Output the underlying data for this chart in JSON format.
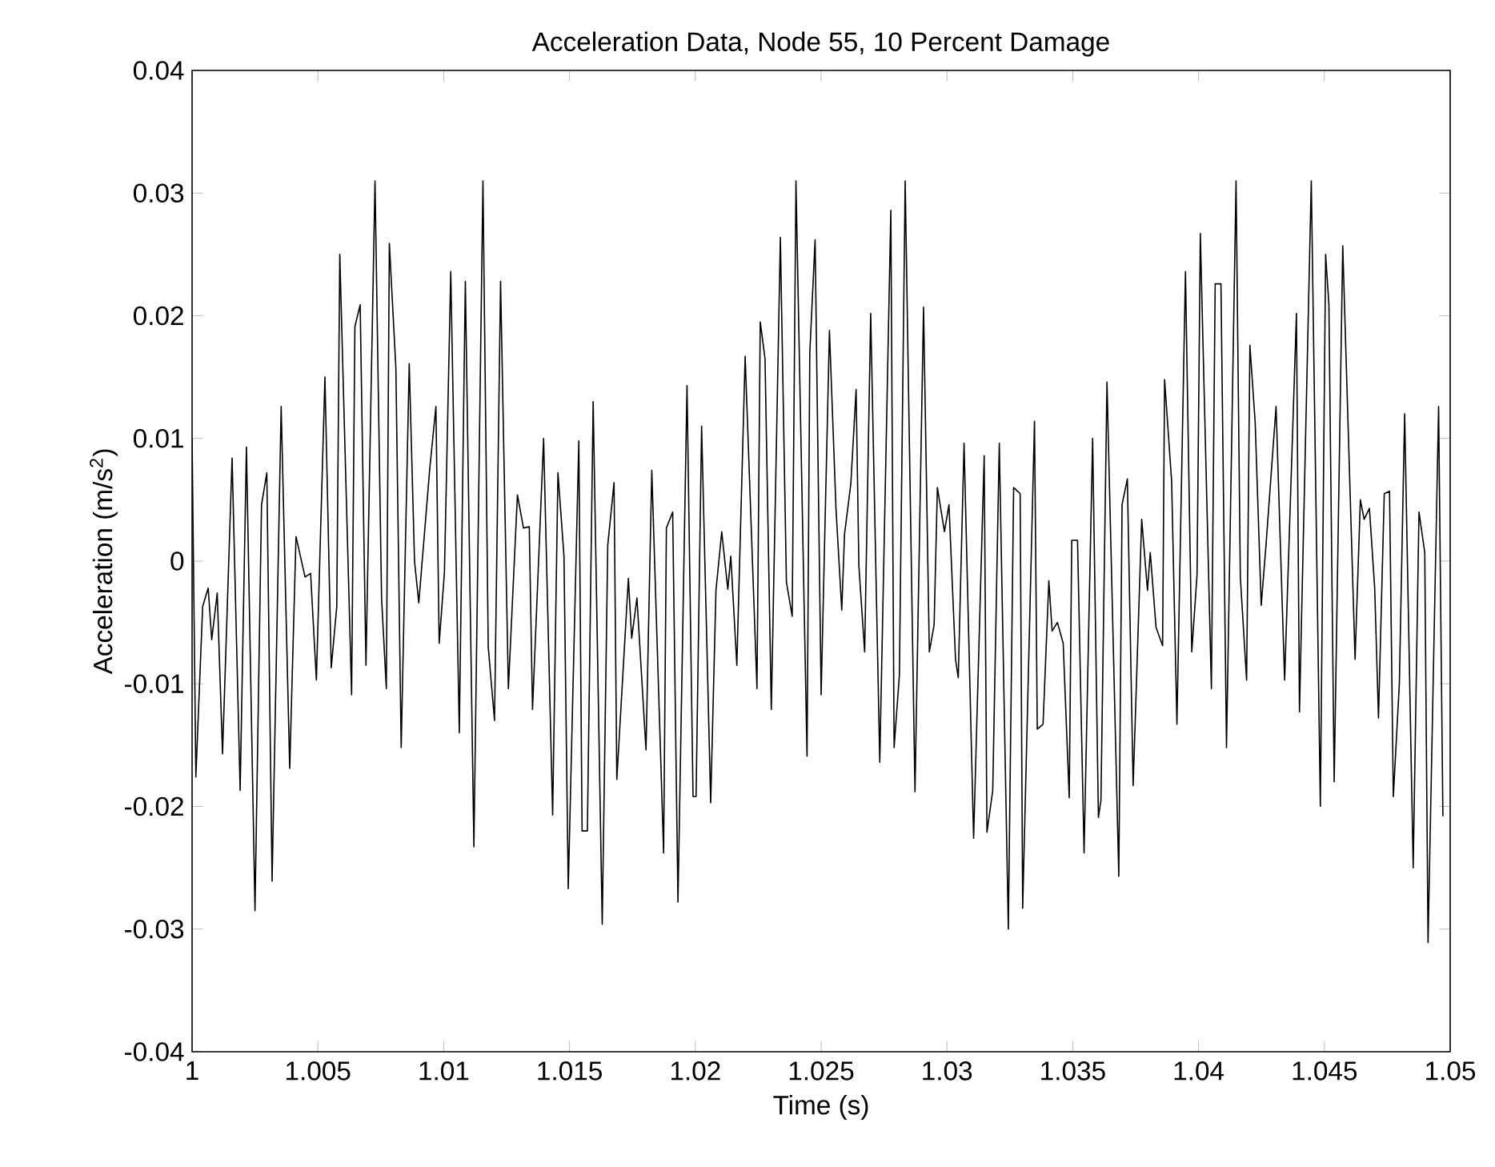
{
  "chart_data": {
    "type": "line",
    "title": "Acceleration Data, Node 55, 10 Percent Damage",
    "xlabel": "Time (s)",
    "ylabel": "Acceleration (m/s$^{2}$)",
    "xlim": [
      1,
      1.05
    ],
    "ylim": [
      -0.04,
      0.04
    ],
    "xticks": [
      1,
      1.005,
      1.01,
      1.015,
      1.02,
      1.025,
      1.03,
      1.035,
      1.04,
      1.045,
      1.05
    ],
    "yticks": [
      -0.04,
      -0.03,
      -0.02,
      -0.01,
      0,
      0.01,
      0.02,
      0.03,
      0.04
    ],
    "color": "#000000",
    "x": [
      1.0,
      1.00015,
      1.00042,
      1.00064,
      1.00078,
      1.001,
      1.00121,
      1.00159,
      1.00191,
      1.00216,
      1.0025,
      1.00276,
      1.00297,
      1.00318,
      1.00354,
      1.00388,
      1.00413,
      1.00449,
      1.00471,
      1.00494,
      1.00528,
      1.00553,
      1.00575,
      1.00587,
      1.00634,
      1.00647,
      1.00668,
      1.00691,
      1.00727,
      1.00753,
      1.00772,
      1.00784,
      1.0081,
      1.00831,
      1.00863,
      1.00884,
      1.00901,
      1.00944,
      1.00969,
      1.00982,
      1.01003,
      1.01028,
      1.01062,
      1.01086,
      1.0112,
      1.01156,
      1.01177,
      1.01202,
      1.01226,
      1.01257,
      1.01293,
      1.01317,
      1.0134,
      1.01353,
      1.01397,
      1.01433,
      1.01454,
      1.01478,
      1.01495,
      1.01537,
      1.0155,
      1.01571,
      1.01594,
      1.0163,
      1.01652,
      1.01677,
      1.01688,
      1.01734,
      1.01747,
      1.01768,
      1.01804,
      1.01827,
      1.01874,
      1.01885,
      1.0191,
      1.01931,
      1.01967,
      1.01991,
      1.02003,
      1.02025,
      1.02061,
      1.02082,
      1.02105,
      1.02129,
      1.02141,
      1.02165,
      1.02198,
      1.02245,
      1.02258,
      1.02277,
      1.02302,
      1.02338,
      1.02362,
      1.02385,
      1.024,
      1.02444,
      1.02455,
      1.02476,
      1.025,
      1.02533,
      1.02559,
      1.02582,
      1.02593,
      1.02618,
      1.02639,
      1.0265,
      1.02673,
      1.02697,
      1.02733,
      1.02777,
      1.0279,
      1.02811,
      1.02834,
      1.02873,
      1.02907,
      1.0293,
      1.02949,
      1.02962,
      1.0299,
      1.03008,
      1.03034,
      1.03045,
      1.03068,
      1.03106,
      1.03148,
      1.03159,
      1.03182,
      1.03208,
      1.03244,
      1.03265,
      1.03291,
      1.03301,
      1.03348,
      1.03359,
      1.03382,
      1.03405,
      1.03418,
      1.03439,
      1.03462,
      1.03486,
      1.03496,
      1.03519,
      1.03545,
      1.03579,
      1.03602,
      1.03612,
      1.03636,
      1.03683,
      1.03696,
      1.03717,
      1.0374,
      1.03774,
      1.03797,
      1.03808,
      1.03831,
      1.03857,
      1.03865,
      1.03893,
      1.03914,
      1.03948,
      1.03973,
      1.03994,
      1.04007,
      1.04051,
      1.04066,
      1.04089,
      1.04111,
      1.04149,
      1.04166,
      1.04191,
      1.04204,
      1.04225,
      1.04249,
      1.04268,
      1.04308,
      1.04342,
      1.04389,
      1.04401,
      1.04448,
      1.04484,
      1.04505,
      1.04518,
      1.04539,
      1.04573,
      1.04622,
      1.04643,
      1.04658,
      1.04679,
      1.047,
      1.04715,
      1.04738,
      1.04759,
      1.04774,
      1.04798,
      1.04819,
      1.04853,
      1.04876,
      1.04899,
      1.04912,
      1.04954,
      1.04971
    ],
    "values": [
      0.01,
      -0.0176,
      -0.0037,
      -0.0022,
      -0.0064,
      -0.0026,
      -0.0157,
      0.0084,
      -0.0187,
      0.0093,
      -0.0285,
      0.0046,
      0.0072,
      -0.0261,
      0.0126,
      -0.0169,
      0.002,
      -0.0013,
      -0.001,
      -0.0097,
      0.015,
      -0.0087,
      -0.0037,
      0.025,
      -0.0109,
      0.0191,
      0.0209,
      -0.0085,
      0.031,
      -0.003,
      -0.0104,
      0.0259,
      0.0157,
      -0.0152,
      0.0161,
      0.0,
      -0.0034,
      0.0074,
      0.0126,
      -0.0067,
      -0.0009,
      0.0236,
      -0.014,
      0.0228,
      -0.0233,
      0.031,
      -0.007,
      -0.013,
      0.0228,
      -0.0104,
      0.0054,
      0.0027,
      0.0028,
      -0.0121,
      0.01,
      -0.0207,
      0.0072,
      0.0004,
      -0.0267,
      0.0098,
      -0.022,
      -0.022,
      0.013,
      -0.0296,
      0.0013,
      0.0064,
      -0.0178,
      -0.0014,
      -0.0063,
      -0.003,
      -0.0154,
      0.0074,
      -0.0238,
      0.0027,
      0.004,
      -0.0278,
      0.0143,
      -0.0192,
      -0.0192,
      0.011,
      -0.0197,
      -0.0024,
      0.0024,
      -0.0023,
      0.0004,
      -0.0085,
      0.0167,
      -0.0104,
      0.0195,
      0.0165,
      -0.0121,
      0.0264,
      -0.0017,
      -0.0045,
      0.031,
      -0.0159,
      0.017,
      0.0262,
      -0.0109,
      0.0188,
      0.0043,
      -0.004,
      0.0022,
      0.0063,
      0.014,
      -0.0004,
      -0.0074,
      0.0202,
      -0.0164,
      0.0286,
      -0.0152,
      -0.0093,
      0.031,
      -0.0188,
      0.0207,
      -0.0074,
      -0.0052,
      0.006,
      0.0024,
      0.0046,
      -0.008,
      -0.0095,
      0.0096,
      -0.0226,
      0.0086,
      -0.0221,
      -0.0187,
      0.0096,
      -0.03,
      0.006,
      0.0055,
      -0.0283,
      0.0114,
      -0.0137,
      -0.0133,
      -0.0016,
      -0.0057,
      -0.005,
      -0.0067,
      -0.0193,
      0.0017,
      0.0017,
      -0.0238,
      0.01,
      -0.0209,
      -0.0195,
      0.0146,
      -0.0257,
      0.0046,
      0.0067,
      -0.0183,
      0.0034,
      -0.0024,
      0.0007,
      -0.0054,
      -0.0069,
      0.0148,
      0.0065,
      -0.0133,
      0.0236,
      -0.0074,
      -0.0011,
      0.0267,
      -0.0104,
      0.0226,
      0.0226,
      -0.0152,
      0.031,
      -0.0013,
      -0.0097,
      0.0176,
      0.0113,
      -0.0036,
      0.0013,
      0.0126,
      -0.0097,
      0.0202,
      -0.0123,
      0.031,
      -0.02,
      0.025,
      0.0209,
      -0.018,
      0.0257,
      -0.008,
      0.005,
      0.0034,
      0.0043,
      -0.0022,
      -0.0128,
      0.0055,
      0.0057,
      -0.0192,
      -0.01,
      0.012,
      -0.025,
      0.004,
      0.0007,
      -0.0311,
      0.0126,
      -0.0208
    ]
  }
}
